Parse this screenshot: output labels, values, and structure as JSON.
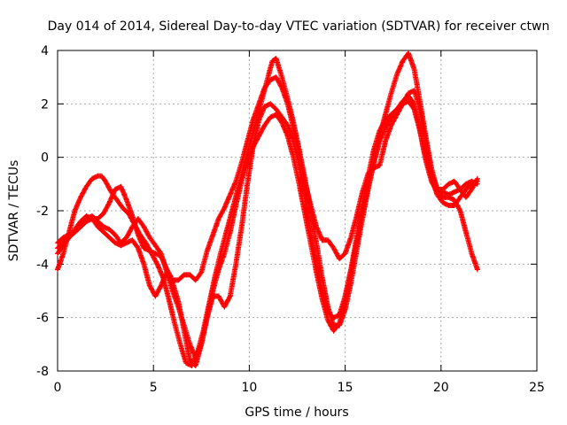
{
  "chart_data": {
    "type": "scatter",
    "title": "Day 014 of 2014, Sidereal Day-to-day VTEC variation (SDTVAR) for receiver ctwn",
    "xlabel": "GPS time / hours",
    "ylabel": "SDTVAR / TECUs",
    "xlim": [
      0,
      25
    ],
    "ylim": [
      -8,
      4
    ],
    "xticks": [
      0,
      5,
      10,
      15,
      20,
      25
    ],
    "yticks": [
      -8,
      -6,
      -4,
      -2,
      0,
      2,
      4
    ],
    "xtick_labels": [
      "0",
      "5",
      "10",
      "15",
      "20",
      "25"
    ],
    "ytick_labels": [
      "-8",
      "-6",
      "-4",
      "-2",
      "0",
      "2",
      "4"
    ],
    "grid": true,
    "legend": "none",
    "marker": "+",
    "series": [
      {
        "name": "trace-1",
        "color": "#ff0000",
        "points": [
          [
            0,
            -4.2
          ],
          [
            0.3,
            -3.6
          ],
          [
            0.6,
            -2.8
          ],
          [
            0.9,
            -2.0
          ],
          [
            1.2,
            -1.5
          ],
          [
            1.5,
            -1.1
          ],
          [
            1.8,
            -0.8
          ],
          [
            2.1,
            -0.7
          ],
          [
            2.3,
            -0.7
          ],
          [
            2.5,
            -0.9
          ],
          [
            2.8,
            -1.3
          ],
          [
            3.1,
            -1.6
          ],
          [
            3.4,
            -1.9
          ],
          [
            3.7,
            -2.1
          ],
          [
            4.0,
            -2.5
          ],
          [
            4.3,
            -2.9
          ],
          [
            4.6,
            -3.2
          ],
          [
            4.9,
            -3.6
          ],
          [
            5.2,
            -4.0
          ],
          [
            5.5,
            -4.5
          ],
          [
            5.8,
            -5.3
          ],
          [
            6.1,
            -6.2
          ],
          [
            6.4,
            -7.0
          ],
          [
            6.7,
            -7.7
          ],
          [
            7.0,
            -7.8
          ],
          [
            7.3,
            -7.3
          ],
          [
            7.6,
            -6.5
          ],
          [
            7.9,
            -5.5
          ],
          [
            8.2,
            -4.5
          ],
          [
            8.5,
            -3.6
          ],
          [
            8.8,
            -2.8
          ],
          [
            9.1,
            -2.0
          ],
          [
            9.4,
            -1.2
          ],
          [
            9.7,
            -0.4
          ],
          [
            10.0,
            0.4
          ],
          [
            10.3,
            1.2
          ],
          [
            10.6,
            2.0
          ],
          [
            10.9,
            2.8
          ],
          [
            11.2,
            3.6
          ],
          [
            11.4,
            3.7
          ],
          [
            11.7,
            3.0
          ],
          [
            12.0,
            2.2
          ],
          [
            12.3,
            1.3
          ],
          [
            12.6,
            0.3
          ],
          [
            12.9,
            -0.8
          ],
          [
            13.2,
            -2.0
          ],
          [
            13.5,
            -3.2
          ],
          [
            13.8,
            -4.5
          ],
          [
            14.1,
            -5.6
          ],
          [
            14.4,
            -6.3
          ],
          [
            14.7,
            -6.3
          ],
          [
            15.0,
            -5.7
          ],
          [
            15.3,
            -4.7
          ],
          [
            15.6,
            -3.5
          ],
          [
            15.9,
            -2.3
          ],
          [
            16.2,
            -1.2
          ],
          [
            16.5,
            -0.2
          ],
          [
            16.8,
            0.8
          ],
          [
            17.1,
            1.6
          ],
          [
            17.4,
            2.4
          ],
          [
            17.7,
            3.1
          ],
          [
            18.0,
            3.6
          ],
          [
            18.3,
            3.9
          ],
          [
            18.6,
            3.3
          ],
          [
            18.9,
            2.1
          ],
          [
            19.2,
            0.8
          ],
          [
            19.5,
            -0.4
          ],
          [
            19.8,
            -1.2
          ],
          [
            20.1,
            -1.5
          ],
          [
            20.4,
            -1.5
          ],
          [
            20.7,
            -1.6
          ],
          [
            21.0,
            -2.0
          ],
          [
            21.3,
            -2.8
          ],
          [
            21.6,
            -3.6
          ],
          [
            21.9,
            -4.2
          ]
        ]
      },
      {
        "name": "trace-2",
        "color": "#ff0000",
        "points": [
          [
            0,
            -3.6
          ],
          [
            0.3,
            -3.3
          ],
          [
            0.6,
            -3.0
          ],
          [
            0.9,
            -2.8
          ],
          [
            1.2,
            -2.6
          ],
          [
            1.5,
            -2.4
          ],
          [
            1.8,
            -2.3
          ],
          [
            2.1,
            -2.3
          ],
          [
            2.4,
            -2.1
          ],
          [
            2.7,
            -1.7
          ],
          [
            3.0,
            -1.2
          ],
          [
            3.3,
            -1.1
          ],
          [
            3.6,
            -1.6
          ],
          [
            3.9,
            -2.2
          ],
          [
            4.2,
            -2.9
          ],
          [
            4.5,
            -3.4
          ],
          [
            4.8,
            -3.5
          ],
          [
            5.1,
            -3.6
          ],
          [
            5.4,
            -3.7
          ],
          [
            5.7,
            -4.2
          ],
          [
            6.0,
            -4.6
          ],
          [
            6.3,
            -4.6
          ],
          [
            6.6,
            -4.4
          ],
          [
            6.9,
            -4.4
          ],
          [
            7.2,
            -4.6
          ],
          [
            7.5,
            -4.3
          ],
          [
            7.8,
            -3.5
          ],
          [
            8.1,
            -2.9
          ],
          [
            8.4,
            -2.3
          ],
          [
            8.7,
            -1.9
          ],
          [
            9.0,
            -1.4
          ],
          [
            9.3,
            -0.9
          ],
          [
            9.6,
            -0.2
          ],
          [
            9.9,
            0.6
          ],
          [
            10.2,
            1.4
          ],
          [
            10.5,
            2.0
          ],
          [
            10.8,
            2.6
          ],
          [
            11.1,
            2.9
          ],
          [
            11.4,
            3.0
          ],
          [
            11.7,
            2.6
          ],
          [
            12.0,
            2.0
          ],
          [
            12.3,
            1.1
          ],
          [
            12.6,
            0.1
          ],
          [
            12.9,
            -0.9
          ],
          [
            13.2,
            -1.8
          ],
          [
            13.5,
            -2.6
          ],
          [
            13.8,
            -3.1
          ],
          [
            14.1,
            -3.1
          ],
          [
            14.4,
            -3.4
          ],
          [
            14.7,
            -3.8
          ],
          [
            15.0,
            -3.6
          ],
          [
            15.3,
            -3.0
          ],
          [
            15.6,
            -2.2
          ],
          [
            15.9,
            -1.3
          ],
          [
            16.2,
            -0.6
          ],
          [
            16.5,
            -0.4
          ],
          [
            16.8,
            -0.3
          ],
          [
            17.1,
            0.6
          ],
          [
            17.4,
            1.2
          ],
          [
            17.7,
            1.6
          ],
          [
            18.0,
            2.0
          ],
          [
            18.3,
            2.4
          ],
          [
            18.6,
            2.5
          ],
          [
            18.9,
            1.8
          ],
          [
            19.2,
            0.6
          ],
          [
            19.5,
            -0.6
          ],
          [
            19.8,
            -1.2
          ],
          [
            20.1,
            -1.2
          ],
          [
            20.4,
            -1.0
          ],
          [
            20.7,
            -0.9
          ],
          [
            21.0,
            -1.2
          ],
          [
            21.3,
            -1.5
          ],
          [
            21.6,
            -1.2
          ],
          [
            21.9,
            -0.8
          ]
        ]
      },
      {
        "name": "trace-3",
        "color": "#ff0000",
        "points": [
          [
            0,
            -3.2
          ],
          [
            0.3,
            -3.0
          ],
          [
            0.6,
            -2.9
          ],
          [
            0.9,
            -2.8
          ],
          [
            1.2,
            -2.6
          ],
          [
            1.5,
            -2.3
          ],
          [
            1.8,
            -2.2
          ],
          [
            2.1,
            -2.4
          ],
          [
            2.4,
            -2.6
          ],
          [
            2.7,
            -2.7
          ],
          [
            3.0,
            -2.9
          ],
          [
            3.3,
            -3.2
          ],
          [
            3.6,
            -3.0
          ],
          [
            3.9,
            -2.6
          ],
          [
            4.2,
            -2.3
          ],
          [
            4.5,
            -2.6
          ],
          [
            4.8,
            -3.0
          ],
          [
            5.1,
            -3.3
          ],
          [
            5.4,
            -3.6
          ],
          [
            5.7,
            -4.3
          ],
          [
            6.0,
            -5.0
          ],
          [
            6.3,
            -5.6
          ],
          [
            6.6,
            -6.3
          ],
          [
            6.9,
            -7.0
          ],
          [
            7.2,
            -7.5
          ],
          [
            7.5,
            -7.0
          ],
          [
            7.8,
            -6.0
          ],
          [
            8.1,
            -5.2
          ],
          [
            8.4,
            -5.2
          ],
          [
            8.7,
            -5.6
          ],
          [
            9.0,
            -5.2
          ],
          [
            9.3,
            -4.0
          ],
          [
            9.6,
            -2.6
          ],
          [
            9.9,
            -1.0
          ],
          [
            10.2,
            0.4
          ],
          [
            10.5,
            1.4
          ],
          [
            10.8,
            1.9
          ],
          [
            11.1,
            2.0
          ],
          [
            11.4,
            1.8
          ],
          [
            11.7,
            1.5
          ],
          [
            12.0,
            1.2
          ],
          [
            12.3,
            0.6
          ],
          [
            12.6,
            -0.3
          ],
          [
            12.9,
            -1.5
          ],
          [
            13.2,
            -2.8
          ],
          [
            13.5,
            -4.0
          ],
          [
            13.8,
            -5.0
          ],
          [
            14.1,
            -5.8
          ],
          [
            14.4,
            -6.0
          ],
          [
            14.7,
            -5.9
          ],
          [
            15.0,
            -5.2
          ],
          [
            15.3,
            -4.2
          ],
          [
            15.6,
            -3.0
          ],
          [
            15.9,
            -1.8
          ],
          [
            16.2,
            -0.7
          ],
          [
            16.5,
            0.3
          ],
          [
            16.8,
            1.0
          ],
          [
            17.1,
            1.4
          ],
          [
            17.4,
            1.6
          ],
          [
            17.7,
            1.8
          ],
          [
            18.0,
            2.1
          ],
          [
            18.3,
            2.3
          ],
          [
            18.6,
            2.0
          ],
          [
            18.9,
            1.0
          ],
          [
            19.2,
            -0.1
          ],
          [
            19.5,
            -0.9
          ],
          [
            19.8,
            -1.3
          ],
          [
            20.1,
            -1.3
          ],
          [
            20.4,
            -1.4
          ],
          [
            20.7,
            -1.3
          ],
          [
            21.0,
            -1.2
          ],
          [
            21.3,
            -1.0
          ],
          [
            21.6,
            -0.9
          ],
          [
            21.9,
            -1.0
          ]
        ]
      },
      {
        "name": "trace-4",
        "color": "#ff0000",
        "points": [
          [
            0,
            -3.4
          ],
          [
            0.3,
            -3.2
          ],
          [
            0.6,
            -3.0
          ],
          [
            0.9,
            -2.7
          ],
          [
            1.2,
            -2.4
          ],
          [
            1.5,
            -2.2
          ],
          [
            1.8,
            -2.3
          ],
          [
            2.1,
            -2.6
          ],
          [
            2.4,
            -2.8
          ],
          [
            2.7,
            -3.0
          ],
          [
            3.0,
            -3.2
          ],
          [
            3.3,
            -3.3
          ],
          [
            3.6,
            -3.2
          ],
          [
            3.9,
            -3.1
          ],
          [
            4.2,
            -3.4
          ],
          [
            4.5,
            -4.0
          ],
          [
            4.8,
            -4.8
          ],
          [
            5.1,
            -5.2
          ],
          [
            5.4,
            -4.8
          ],
          [
            5.7,
            -4.3
          ],
          [
            6.0,
            -4.7
          ],
          [
            6.3,
            -5.4
          ],
          [
            6.6,
            -6.5
          ],
          [
            6.9,
            -7.6
          ],
          [
            7.2,
            -7.8
          ],
          [
            7.5,
            -7.0
          ],
          [
            7.8,
            -6.0
          ],
          [
            8.1,
            -5.0
          ],
          [
            8.4,
            -4.2
          ],
          [
            8.7,
            -3.6
          ],
          [
            9.0,
            -2.8
          ],
          [
            9.3,
            -1.8
          ],
          [
            9.6,
            -0.9
          ],
          [
            9.9,
            -0.2
          ],
          [
            10.2,
            0.4
          ],
          [
            10.5,
            0.8
          ],
          [
            10.8,
            1.2
          ],
          [
            11.1,
            1.5
          ],
          [
            11.4,
            1.6
          ],
          [
            11.7,
            1.3
          ],
          [
            12.0,
            0.8
          ],
          [
            12.3,
            0.0
          ],
          [
            12.6,
            -1.0
          ],
          [
            12.9,
            -2.1
          ],
          [
            13.2,
            -3.2
          ],
          [
            13.5,
            -4.3
          ],
          [
            13.8,
            -5.3
          ],
          [
            14.1,
            -6.1
          ],
          [
            14.4,
            -6.5
          ],
          [
            14.7,
            -6.2
          ],
          [
            15.0,
            -5.4
          ],
          [
            15.3,
            -4.3
          ],
          [
            15.6,
            -3.2
          ],
          [
            15.9,
            -2.1
          ],
          [
            16.2,
            -1.1
          ],
          [
            16.5,
            -0.2
          ],
          [
            16.8,
            0.6
          ],
          [
            17.1,
            1.1
          ],
          [
            17.4,
            1.5
          ],
          [
            17.7,
            1.8
          ],
          [
            18.0,
            2.0
          ],
          [
            18.3,
            2.1
          ],
          [
            18.6,
            1.8
          ],
          [
            18.9,
            1.0
          ],
          [
            19.2,
            0.0
          ],
          [
            19.5,
            -0.8
          ],
          [
            19.8,
            -1.4
          ],
          [
            20.1,
            -1.7
          ],
          [
            20.4,
            -1.8
          ],
          [
            20.7,
            -1.8
          ],
          [
            21.0,
            -1.5
          ],
          [
            21.3,
            -1.2
          ],
          [
            21.6,
            -1.0
          ],
          [
            21.9,
            -0.9
          ]
        ]
      }
    ]
  }
}
